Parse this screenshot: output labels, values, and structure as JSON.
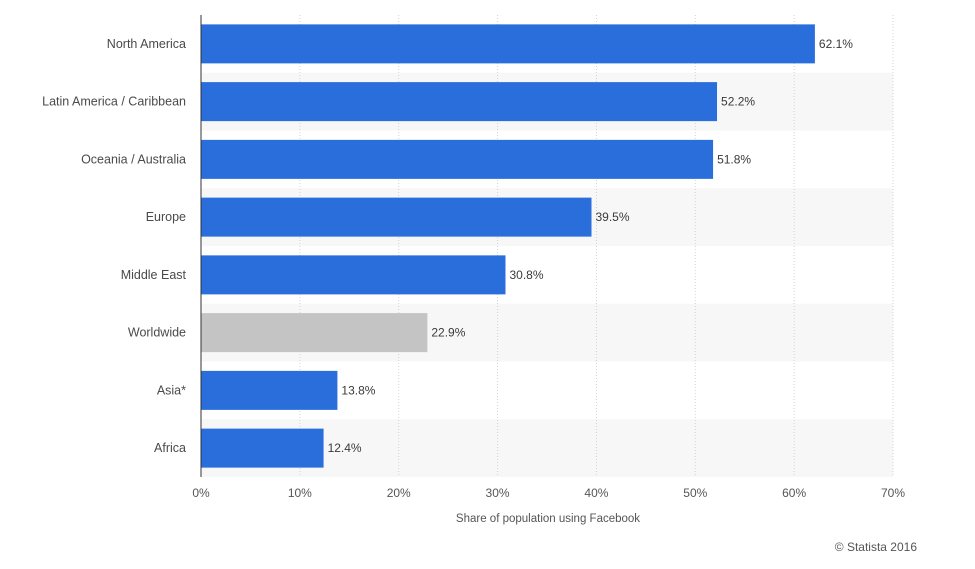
{
  "chart_data": {
    "type": "bar",
    "orientation": "horizontal",
    "title": "",
    "xlabel": "Share of population using Facebook",
    "ylabel": "",
    "xlim": [
      0,
      70
    ],
    "ticks": [
      0,
      10,
      20,
      30,
      40,
      50,
      60,
      70
    ],
    "tick_suffix": "%",
    "categories": [
      "North America",
      "Latin America / Caribbean",
      "Oceania / Australia",
      "Europe",
      "Middle East",
      "Worldwide",
      "Asia*",
      "Africa"
    ],
    "values": [
      62.1,
      52.2,
      51.8,
      39.5,
      30.8,
      22.9,
      13.8,
      12.4
    ],
    "value_labels": [
      "62.1%",
      "52.2%",
      "51.8%",
      "39.5%",
      "30.8%",
      "22.9%",
      "13.8%",
      "12.4%"
    ],
    "highlight_category": "Worldwide",
    "grid": true,
    "colors": {
      "bar": "#2a6edc",
      "highlight": "#c4c4c4",
      "band": "#f7f7f7",
      "grid": "#d2d2d2",
      "axis": "#333333"
    }
  },
  "credit": "© Statista 2016"
}
